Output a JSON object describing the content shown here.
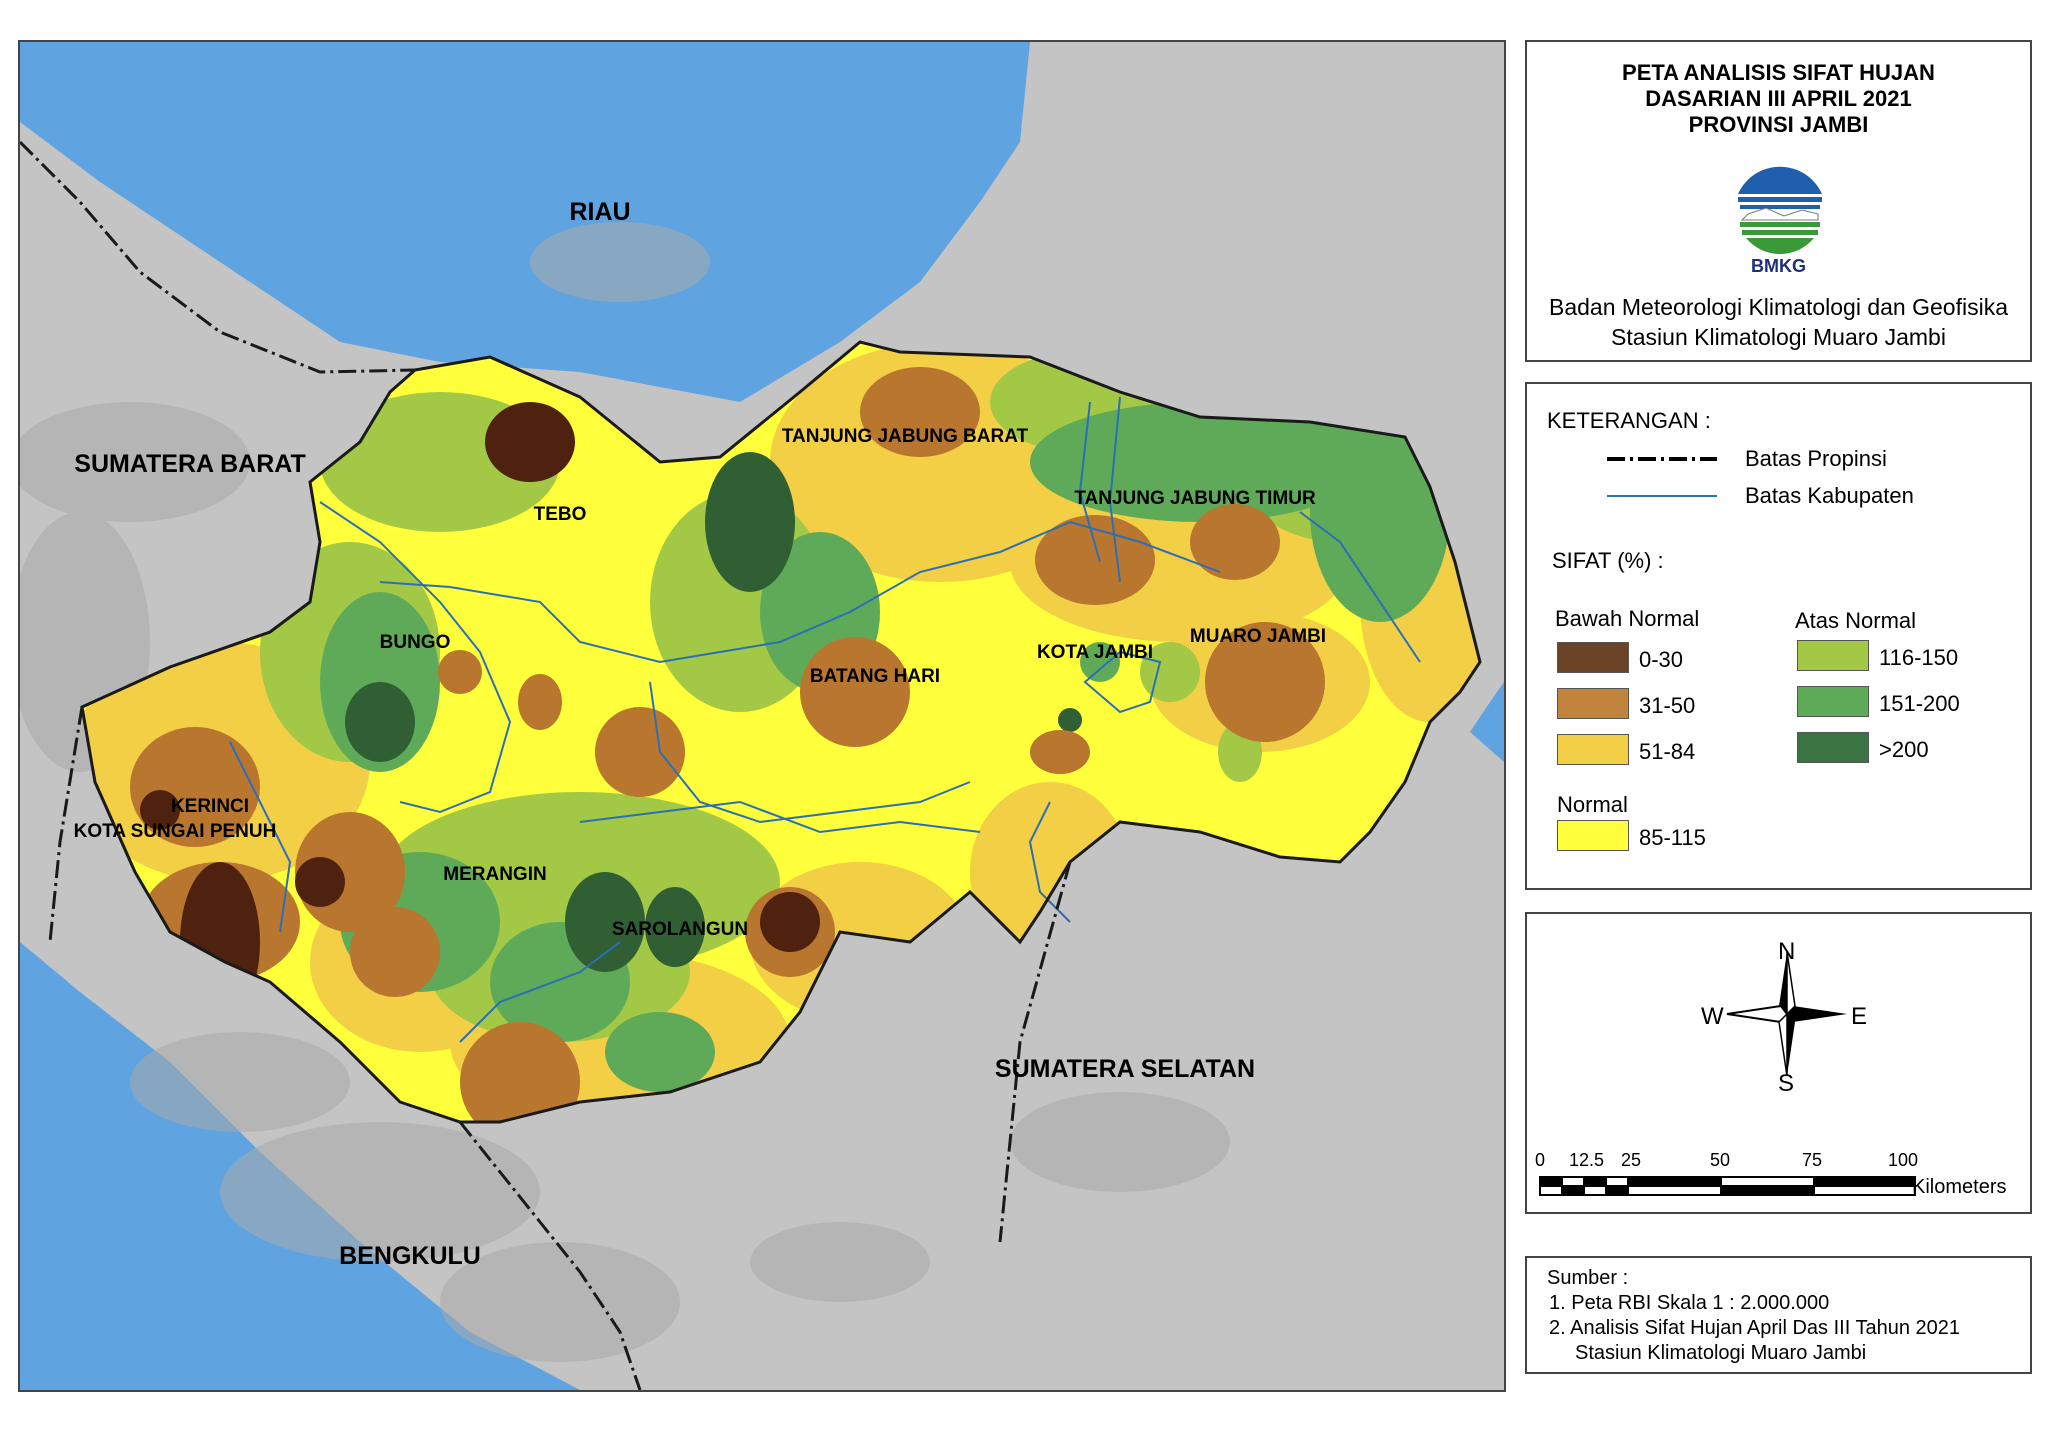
{
  "title": {
    "line1": "PETA ANALISIS SIFAT HUJAN",
    "line2": "DASARIAN III APRIL 2021",
    "line3": "PROVINSI JAMBI"
  },
  "logo_text": "BMKG",
  "organization": {
    "line1": "Badan Meteorologi Klimatologi dan Geofisika",
    "line2": "Stasiun Klimatologi Muaro Jambi"
  },
  "legend": {
    "heading": "KETERANGAN :",
    "lines": [
      {
        "label": "Batas Propinsi",
        "style": "dash-dot",
        "color": "#000000"
      },
      {
        "label": "Batas Kabupaten",
        "style": "solid",
        "color": "#2c6fb5"
      }
    ],
    "sifat_heading": "SIFAT (%) :",
    "groups": [
      {
        "name": "Bawah Normal",
        "classes": [
          {
            "label": "0-30",
            "color": "#6b4428"
          },
          {
            "label": "31-50",
            "color": "#c0843c"
          },
          {
            "label": "51-84",
            "color": "#f2cf45"
          }
        ]
      },
      {
        "name": "Atas Normal",
        "classes": [
          {
            "label": "116-150",
            "color": "#a3c845"
          },
          {
            "label": "151-200",
            "color": "#5faa58"
          },
          {
            "label": ">200",
            "color": "#3a7443"
          }
        ]
      },
      {
        "name": "Normal",
        "classes": [
          {
            "label": "85-115",
            "color": "#ffff3c"
          }
        ]
      }
    ]
  },
  "compass": {
    "n": "N",
    "s": "S",
    "e": "E",
    "w": "W"
  },
  "scale_bar": {
    "ticks": [
      "0",
      "12.5",
      "25",
      "50",
      "75",
      "100"
    ],
    "unit": "Kilometers"
  },
  "source": {
    "heading": "Sumber :",
    "items": [
      "1. Peta RBI Skala 1 : 2.000.000",
      "2. Analisis Sifat Hujan April Das III Tahun 2021",
      "Stasiun Klimatologi Muaro Jambi"
    ]
  },
  "map": {
    "sea_color": "#5fa4e0",
    "land_color": "#c4c4c4",
    "neighbor_labels": [
      "RIAU",
      "SUMATERA BARAT",
      "SUMATERA SELATAN",
      "BENGKULU"
    ],
    "district_labels": [
      "TANJUNG JABUNG BARAT",
      "TANJUNG JABUNG TIMUR",
      "TEBO",
      "BUNGO",
      "KOTA JAMBI",
      "MUARO JAMBI",
      "BATANG HARI",
      "KERINCI",
      "KOTA SUNGAI PENUH",
      "MERANGIN",
      "SAROLANGUN"
    ]
  }
}
